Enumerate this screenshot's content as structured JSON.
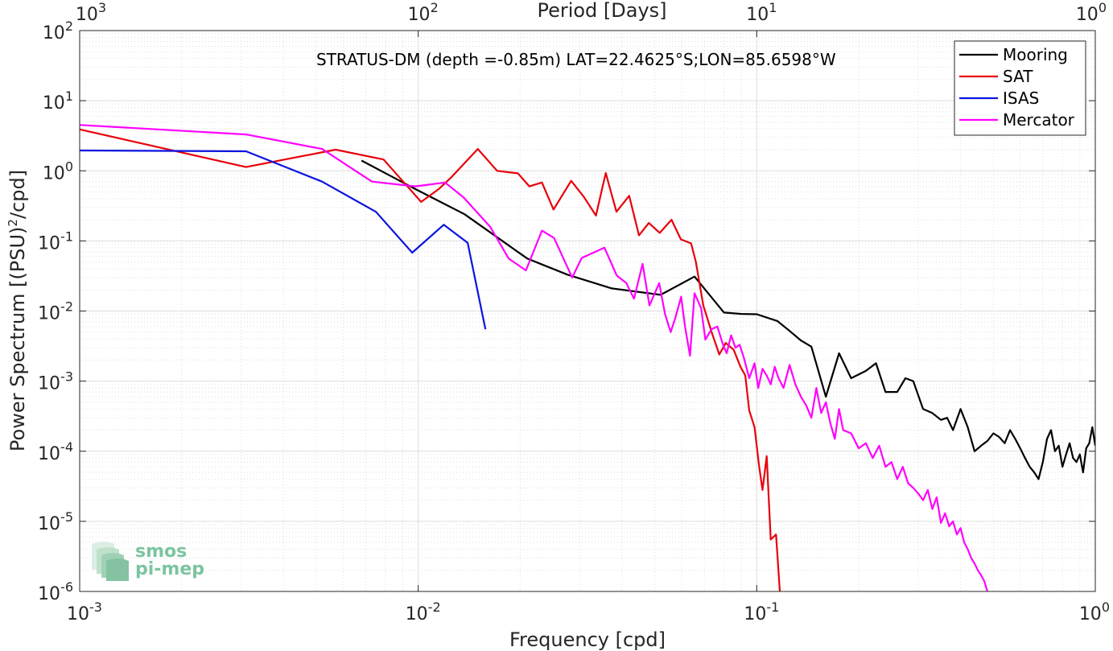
{
  "chart_data": {
    "type": "line",
    "title": "STRATUS-DM (depth =-0.85m) LAT=22.4625°S;LON=85.6598°W",
    "xlabel": "Frequency [cpd]",
    "ylabel_main": "Power Spectrum [(PSU)",
    "ylabel_sup": "2",
    "ylabel_tail": "/cpd]",
    "top_xlabel": "Period [Days]",
    "xscale": "log",
    "yscale": "log",
    "xlim": [
      0.001,
      1
    ],
    "ylim": [
      1e-06,
      100
    ],
    "grid": true,
    "legend_position": "top-right",
    "bottom_ticks": [
      {
        "value": 0.001,
        "base": "10",
        "exp": "-3"
      },
      {
        "value": 0.01,
        "base": "10",
        "exp": "-2"
      },
      {
        "value": 0.1,
        "base": "10",
        "exp": "-1"
      },
      {
        "value": 1,
        "base": "10",
        "exp": "0"
      }
    ],
    "top_ticks": [
      {
        "freq": 0.001,
        "base": "10",
        "exp": "3"
      },
      {
        "freq": 0.01,
        "base": "10",
        "exp": "2"
      },
      {
        "freq": 0.1,
        "base": "10",
        "exp": "1"
      },
      {
        "freq": 1,
        "base": "10",
        "exp": "0"
      }
    ],
    "y_ticks": [
      {
        "value": 100,
        "base": "10",
        "exp": "2"
      },
      {
        "value": 10,
        "base": "10",
        "exp": "1"
      },
      {
        "value": 1,
        "base": "10",
        "exp": "0"
      },
      {
        "value": 0.1,
        "base": "10",
        "exp": "-1"
      },
      {
        "value": 0.01,
        "base": "10",
        "exp": "-2"
      },
      {
        "value": 0.001,
        "base": "10",
        "exp": "-3"
      },
      {
        "value": 0.0001,
        "base": "10",
        "exp": "-4"
      },
      {
        "value": 1e-05,
        "base": "10",
        "exp": "-5"
      },
      {
        "value": 1e-06,
        "base": "10",
        "exp": "-6"
      }
    ],
    "series": [
      {
        "name": "Mooring",
        "color": "#000000",
        "points": [
          [
            0.0068,
            1.4
          ],
          [
            0.0098,
            0.55
          ],
          [
            0.0137,
            0.24
          ],
          [
            0.0195,
            0.072
          ],
          [
            0.021,
            0.056
          ],
          [
            0.0276,
            0.033
          ],
          [
            0.0373,
            0.021
          ],
          [
            0.052,
            0.017
          ],
          [
            0.0655,
            0.031
          ],
          [
            0.08,
            0.0095
          ],
          [
            0.09,
            0.0091
          ],
          [
            0.1,
            0.009
          ],
          [
            0.115,
            0.0072
          ],
          [
            0.125,
            0.0052
          ],
          [
            0.135,
            0.0038
          ],
          [
            0.145,
            0.0031
          ],
          [
            0.16,
            0.0006
          ],
          [
            0.175,
            0.0025
          ],
          [
            0.19,
            0.0011
          ],
          [
            0.21,
            0.0014
          ],
          [
            0.225,
            0.0018
          ],
          [
            0.24,
            0.0007
          ],
          [
            0.26,
            0.0007
          ],
          [
            0.275,
            0.0011
          ],
          [
            0.29,
            0.001
          ],
          [
            0.31,
            0.0004
          ],
          [
            0.33,
            0.00035
          ],
          [
            0.35,
            0.00028
          ],
          [
            0.365,
            0.0003
          ],
          [
            0.38,
            0.0002
          ],
          [
            0.4,
            0.0004
          ],
          [
            0.42,
            0.00022
          ],
          [
            0.44,
            0.0001
          ],
          [
            0.46,
            0.00012
          ],
          [
            0.48,
            0.00014
          ],
          [
            0.5,
            0.00018
          ],
          [
            0.52,
            0.00016
          ],
          [
            0.54,
            0.00013
          ],
          [
            0.56,
            0.0002
          ],
          [
            0.58,
            0.00015
          ],
          [
            0.6,
            0.00011
          ],
          [
            0.62,
            8e-05
          ],
          [
            0.64,
            6e-05
          ],
          [
            0.66,
            5e-05
          ],
          [
            0.68,
            4e-05
          ],
          [
            0.7,
            7e-05
          ],
          [
            0.72,
            0.00015
          ],
          [
            0.74,
            0.0002
          ],
          [
            0.76,
            0.0001
          ],
          [
            0.78,
            0.00012
          ],
          [
            0.8,
            6e-05
          ],
          [
            0.82,
            9e-05
          ],
          [
            0.84,
            0.00013
          ],
          [
            0.86,
            8e-05
          ],
          [
            0.88,
            7e-05
          ],
          [
            0.9,
            9e-05
          ],
          [
            0.92,
            5e-05
          ],
          [
            0.94,
            0.00011
          ],
          [
            0.96,
            0.00013
          ],
          [
            0.98,
            0.00022
          ],
          [
            1.0,
            0.00012
          ]
        ]
      },
      {
        "name": "SAT",
        "color": "#e8000b",
        "points": [
          [
            0.001,
            3.9
          ],
          [
            0.0031,
            1.13
          ],
          [
            0.0057,
            2.0
          ],
          [
            0.0079,
            1.45
          ],
          [
            0.0102,
            0.36
          ],
          [
            0.0115,
            0.55
          ],
          [
            0.0125,
            0.8
          ],
          [
            0.015,
            2.05
          ],
          [
            0.0171,
            1.0
          ],
          [
            0.0197,
            0.92
          ],
          [
            0.0213,
            0.6
          ],
          [
            0.0232,
            0.68
          ],
          [
            0.0251,
            0.28
          ],
          [
            0.0283,
            0.72
          ],
          [
            0.0309,
            0.42
          ],
          [
            0.0335,
            0.23
          ],
          [
            0.0358,
            0.93
          ],
          [
            0.0385,
            0.26
          ],
          [
            0.042,
            0.44
          ],
          [
            0.0449,
            0.12
          ],
          [
            0.048,
            0.18
          ],
          [
            0.0517,
            0.13
          ],
          [
            0.056,
            0.2
          ],
          [
            0.0597,
            0.105
          ],
          [
            0.064,
            0.092
          ],
          [
            0.0661,
            0.05
          ],
          [
            0.0695,
            0.012
          ],
          [
            0.0738,
            0.0048
          ],
          [
            0.0775,
            0.0024
          ],
          [
            0.081,
            0.0035
          ],
          [
            0.0855,
            0.0028
          ],
          [
            0.0895,
            0.0016
          ],
          [
            0.0925,
            0.0012
          ],
          [
            0.095,
            0.00038
          ],
          [
            0.0985,
            0.00022
          ],
          [
            0.1015,
            6.3e-05
          ],
          [
            0.104,
            2.8e-05
          ],
          [
            0.107,
            8.5e-05
          ],
          [
            0.11,
            5.5e-06
          ],
          [
            0.114,
            6.5e-06
          ],
          [
            0.117,
            1e-06
          ]
        ]
      },
      {
        "name": "ISAS",
        "color": "#0a14e0",
        "points": [
          [
            0.001,
            1.95
          ],
          [
            0.0031,
            1.9
          ],
          [
            0.0052,
            0.7
          ],
          [
            0.0075,
            0.26
          ],
          [
            0.0096,
            0.068
          ],
          [
            0.0119,
            0.17
          ],
          [
            0.014,
            0.094
          ],
          [
            0.0158,
            0.0055
          ]
        ]
      },
      {
        "name": "Mercator",
        "color": "#ff00ff",
        "points": [
          [
            0.001,
            4.5
          ],
          [
            0.0031,
            3.3
          ],
          [
            0.0052,
            2.05
          ],
          [
            0.0073,
            0.7
          ],
          [
            0.0098,
            0.6
          ],
          [
            0.012,
            0.68
          ],
          [
            0.0136,
            0.42
          ],
          [
            0.0163,
            0.16
          ],
          [
            0.0185,
            0.056
          ],
          [
            0.0208,
            0.038
          ],
          [
            0.0232,
            0.14
          ],
          [
            0.0252,
            0.11
          ],
          [
            0.0285,
            0.03
          ],
          [
            0.0304,
            0.057
          ],
          [
            0.0355,
            0.08
          ],
          [
            0.0386,
            0.032
          ],
          [
            0.0412,
            0.025
          ],
          [
            0.0434,
            0.015
          ],
          [
            0.046,
            0.047
          ],
          [
            0.0482,
            0.012
          ],
          [
            0.0515,
            0.025
          ],
          [
            0.0536,
            0.009
          ],
          [
            0.0557,
            0.005
          ],
          [
            0.0575,
            0.008
          ],
          [
            0.0598,
            0.016
          ],
          [
            0.0614,
            0.006
          ],
          [
            0.0635,
            0.0023
          ],
          [
            0.0655,
            0.018
          ],
          [
            0.0685,
            0.011
          ],
          [
            0.0705,
            0.0039
          ],
          [
            0.0735,
            0.0055
          ],
          [
            0.0765,
            0.006
          ],
          [
            0.0795,
            0.0033
          ],
          [
            0.0815,
            0.0025
          ],
          [
            0.084,
            0.0045
          ],
          [
            0.0865,
            0.003
          ],
          [
            0.089,
            0.0033
          ],
          [
            0.0915,
            0.0022
          ],
          [
            0.095,
            0.0011
          ],
          [
            0.0985,
            0.0018
          ],
          [
            0.101,
            0.0008
          ],
          [
            0.104,
            0.0015
          ],
          [
            0.107,
            0.0012
          ],
          [
            0.11,
            0.0009
          ],
          [
            0.113,
            0.0016
          ],
          [
            0.116,
            0.0011
          ],
          [
            0.12,
            0.0008
          ],
          [
            0.125,
            0.0017
          ],
          [
            0.13,
            0.0009
          ],
          [
            0.135,
            0.0006
          ],
          [
            0.14,
            0.00045
          ],
          [
            0.145,
            0.0003
          ],
          [
            0.15,
            0.0008
          ],
          [
            0.155,
            0.00035
          ],
          [
            0.16,
            0.0005
          ],
          [
            0.165,
            0.00025
          ],
          [
            0.17,
            0.00015
          ],
          [
            0.175,
            0.0004
          ],
          [
            0.18,
            0.0002
          ],
          [
            0.19,
            0.00018
          ],
          [
            0.2,
            0.00011
          ],
          [
            0.21,
            0.00013
          ],
          [
            0.22,
            8e-05
          ],
          [
            0.23,
            0.00012
          ],
          [
            0.24,
            6e-05
          ],
          [
            0.25,
            7e-05
          ],
          [
            0.26,
            4e-05
          ],
          [
            0.27,
            6e-05
          ],
          [
            0.28,
            3.5e-05
          ],
          [
            0.29,
            3e-05
          ],
          [
            0.3,
            2.5e-05
          ],
          [
            0.31,
            2e-05
          ],
          [
            0.32,
            2.8e-05
          ],
          [
            0.33,
            1.5e-05
          ],
          [
            0.34,
            2.2e-05
          ],
          [
            0.35,
            9.5e-06
          ],
          [
            0.36,
            1.3e-05
          ],
          [
            0.37,
            8.5e-06
          ],
          [
            0.38,
            1e-05
          ],
          [
            0.39,
            6.5e-06
          ],
          [
            0.4,
            8e-06
          ],
          [
            0.41,
            5e-06
          ],
          [
            0.42,
            4e-06
          ],
          [
            0.43,
            3e-06
          ],
          [
            0.44,
            2.5e-06
          ],
          [
            0.45,
            2e-06
          ],
          [
            0.46,
            1.7e-06
          ],
          [
            0.47,
            1.4e-06
          ],
          [
            0.48,
            1e-06
          ]
        ]
      }
    ]
  },
  "logo": {
    "line1": "smos",
    "line2": "pi-mep"
  }
}
